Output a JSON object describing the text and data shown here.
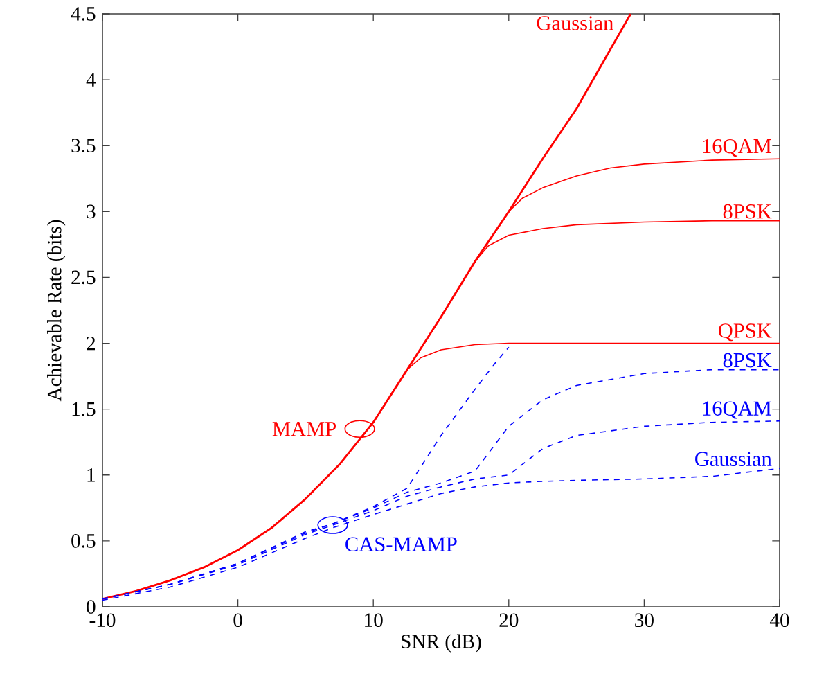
{
  "chart_data": {
    "type": "line",
    "xlabel": "SNR (dB)",
    "ylabel": "Achievable Rate (bits)",
    "xlim": [
      -10,
      40
    ],
    "ylim": [
      0,
      4.5
    ],
    "xticks": [
      -10,
      0,
      10,
      20,
      30,
      40
    ],
    "yticks": [
      0,
      0.5,
      1,
      1.5,
      2,
      2.5,
      3,
      3.5,
      4,
      4.5
    ],
    "grid": false,
    "legend": false,
    "marker": "none",
    "series": [
      {
        "name": "Gaussian",
        "color": "#ff0000",
        "line_style": "solid",
        "x": [
          -10,
          -7.5,
          -5,
          -2.5,
          0,
          2.5,
          5,
          7.5,
          10,
          12.5,
          15,
          17.5,
          20,
          22.5,
          25,
          29
        ],
        "values": [
          0.06,
          0.12,
          0.2,
          0.3,
          0.43,
          0.6,
          0.82,
          1.08,
          1.4,
          1.8,
          2.2,
          2.62,
          3.0,
          3.4,
          3.78,
          4.5
        ]
      },
      {
        "name": "16QAM",
        "color": "#ff0000",
        "line_style": "solid",
        "x": [
          20,
          21,
          22.5,
          25,
          27.5,
          30,
          35,
          40
        ],
        "values": [
          3.0,
          3.1,
          3.18,
          3.27,
          3.33,
          3.36,
          3.39,
          3.4
        ]
      },
      {
        "name": "8PSK",
        "color": "#ff0000",
        "line_style": "solid",
        "x": [
          17.5,
          18.5,
          20,
          22.5,
          25,
          30,
          35,
          40
        ],
        "values": [
          2.62,
          2.74,
          2.82,
          2.87,
          2.9,
          2.92,
          2.93,
          2.93
        ]
      },
      {
        "name": "QPSK",
        "color": "#ff0000",
        "line_style": "solid",
        "x": [
          12.5,
          13.5,
          15,
          17.5,
          20,
          25,
          30,
          40
        ],
        "values": [
          1.8,
          1.89,
          1.95,
          1.99,
          2.0,
          2.0,
          2.0,
          2.0
        ]
      },
      {
        "name": null,
        "color": "#0000ff",
        "line_style": "dashed",
        "x": [
          -10,
          -5,
          0,
          5,
          7,
          10,
          12.5,
          15,
          17.5,
          19,
          20
        ],
        "values": [
          0.06,
          0.17,
          0.33,
          0.57,
          0.63,
          0.76,
          0.9,
          1.3,
          1.65,
          1.85,
          1.97
        ]
      },
      {
        "name": "8PSK",
        "color": "#0000ff",
        "line_style": "dashed",
        "x": [
          -10,
          -5,
          0,
          5,
          7,
          10,
          12.5,
          15,
          17.5,
          20,
          22.5,
          25,
          30,
          35,
          40
        ],
        "values": [
          0.06,
          0.17,
          0.33,
          0.56,
          0.63,
          0.75,
          0.87,
          0.94,
          1.03,
          1.37,
          1.57,
          1.68,
          1.77,
          1.8,
          1.8
        ]
      },
      {
        "name": "16QAM",
        "color": "#0000ff",
        "line_style": "dashed",
        "x": [
          -10,
          -5,
          0,
          5,
          7,
          10,
          12.5,
          15,
          17.5,
          20,
          22.5,
          25,
          30,
          35,
          40
        ],
        "values": [
          0.06,
          0.17,
          0.32,
          0.55,
          0.62,
          0.73,
          0.84,
          0.91,
          0.97,
          1.0,
          1.2,
          1.3,
          1.37,
          1.4,
          1.41
        ]
      },
      {
        "name": "Gaussian",
        "color": "#0000ff",
        "line_style": "dashed",
        "x": [
          -10,
          -5,
          0,
          5,
          7,
          10,
          12.5,
          15,
          17.5,
          20,
          22,
          25,
          30,
          35,
          40
        ],
        "values": [
          0.05,
          0.15,
          0.3,
          0.52,
          0.6,
          0.7,
          0.78,
          0.86,
          0.91,
          0.94,
          0.95,
          0.96,
          0.97,
          0.99,
          1.05
        ]
      }
    ],
    "annotations": [
      {
        "text": "MAMP",
        "x": 9,
        "y": 1.35
      },
      {
        "text": "CAS-MAMP",
        "x": 7,
        "y": 0.62
      }
    ]
  }
}
